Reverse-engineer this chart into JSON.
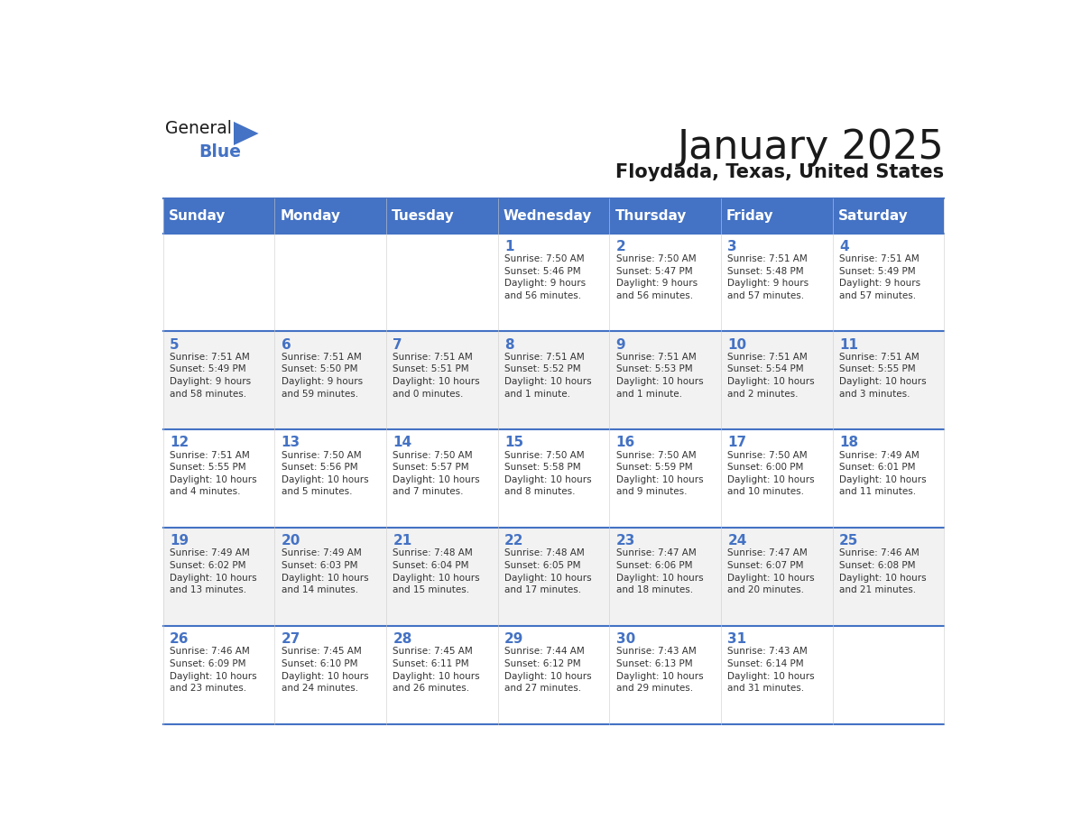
{
  "title": "January 2025",
  "subtitle": "Floydada, Texas, United States",
  "days_of_week": [
    "Sunday",
    "Monday",
    "Tuesday",
    "Wednesday",
    "Thursday",
    "Friday",
    "Saturday"
  ],
  "header_bg": "#4472C4",
  "header_text_color": "#FFFFFF",
  "cell_bg_light": "#FFFFFF",
  "cell_bg_alt": "#F2F2F2",
  "grid_line_color": "#4472C4",
  "day_number_color": "#4472C4",
  "cell_text_color": "#333333",
  "title_color": "#1a1a1a",
  "subtitle_color": "#1a1a1a",
  "logo_general_color": "#1a1a1a",
  "logo_blue_color": "#4472C4",
  "calendar_data": [
    [
      {
        "day": null,
        "info": ""
      },
      {
        "day": null,
        "info": ""
      },
      {
        "day": null,
        "info": ""
      },
      {
        "day": 1,
        "info": "Sunrise: 7:50 AM\nSunset: 5:46 PM\nDaylight: 9 hours\nand 56 minutes."
      },
      {
        "day": 2,
        "info": "Sunrise: 7:50 AM\nSunset: 5:47 PM\nDaylight: 9 hours\nand 56 minutes."
      },
      {
        "day": 3,
        "info": "Sunrise: 7:51 AM\nSunset: 5:48 PM\nDaylight: 9 hours\nand 57 minutes."
      },
      {
        "day": 4,
        "info": "Sunrise: 7:51 AM\nSunset: 5:49 PM\nDaylight: 9 hours\nand 57 minutes."
      }
    ],
    [
      {
        "day": 5,
        "info": "Sunrise: 7:51 AM\nSunset: 5:49 PM\nDaylight: 9 hours\nand 58 minutes."
      },
      {
        "day": 6,
        "info": "Sunrise: 7:51 AM\nSunset: 5:50 PM\nDaylight: 9 hours\nand 59 minutes."
      },
      {
        "day": 7,
        "info": "Sunrise: 7:51 AM\nSunset: 5:51 PM\nDaylight: 10 hours\nand 0 minutes."
      },
      {
        "day": 8,
        "info": "Sunrise: 7:51 AM\nSunset: 5:52 PM\nDaylight: 10 hours\nand 1 minute."
      },
      {
        "day": 9,
        "info": "Sunrise: 7:51 AM\nSunset: 5:53 PM\nDaylight: 10 hours\nand 1 minute."
      },
      {
        "day": 10,
        "info": "Sunrise: 7:51 AM\nSunset: 5:54 PM\nDaylight: 10 hours\nand 2 minutes."
      },
      {
        "day": 11,
        "info": "Sunrise: 7:51 AM\nSunset: 5:55 PM\nDaylight: 10 hours\nand 3 minutes."
      }
    ],
    [
      {
        "day": 12,
        "info": "Sunrise: 7:51 AM\nSunset: 5:55 PM\nDaylight: 10 hours\nand 4 minutes."
      },
      {
        "day": 13,
        "info": "Sunrise: 7:50 AM\nSunset: 5:56 PM\nDaylight: 10 hours\nand 5 minutes."
      },
      {
        "day": 14,
        "info": "Sunrise: 7:50 AM\nSunset: 5:57 PM\nDaylight: 10 hours\nand 7 minutes."
      },
      {
        "day": 15,
        "info": "Sunrise: 7:50 AM\nSunset: 5:58 PM\nDaylight: 10 hours\nand 8 minutes."
      },
      {
        "day": 16,
        "info": "Sunrise: 7:50 AM\nSunset: 5:59 PM\nDaylight: 10 hours\nand 9 minutes."
      },
      {
        "day": 17,
        "info": "Sunrise: 7:50 AM\nSunset: 6:00 PM\nDaylight: 10 hours\nand 10 minutes."
      },
      {
        "day": 18,
        "info": "Sunrise: 7:49 AM\nSunset: 6:01 PM\nDaylight: 10 hours\nand 11 minutes."
      }
    ],
    [
      {
        "day": 19,
        "info": "Sunrise: 7:49 AM\nSunset: 6:02 PM\nDaylight: 10 hours\nand 13 minutes."
      },
      {
        "day": 20,
        "info": "Sunrise: 7:49 AM\nSunset: 6:03 PM\nDaylight: 10 hours\nand 14 minutes."
      },
      {
        "day": 21,
        "info": "Sunrise: 7:48 AM\nSunset: 6:04 PM\nDaylight: 10 hours\nand 15 minutes."
      },
      {
        "day": 22,
        "info": "Sunrise: 7:48 AM\nSunset: 6:05 PM\nDaylight: 10 hours\nand 17 minutes."
      },
      {
        "day": 23,
        "info": "Sunrise: 7:47 AM\nSunset: 6:06 PM\nDaylight: 10 hours\nand 18 minutes."
      },
      {
        "day": 24,
        "info": "Sunrise: 7:47 AM\nSunset: 6:07 PM\nDaylight: 10 hours\nand 20 minutes."
      },
      {
        "day": 25,
        "info": "Sunrise: 7:46 AM\nSunset: 6:08 PM\nDaylight: 10 hours\nand 21 minutes."
      }
    ],
    [
      {
        "day": 26,
        "info": "Sunrise: 7:46 AM\nSunset: 6:09 PM\nDaylight: 10 hours\nand 23 minutes."
      },
      {
        "day": 27,
        "info": "Sunrise: 7:45 AM\nSunset: 6:10 PM\nDaylight: 10 hours\nand 24 minutes."
      },
      {
        "day": 28,
        "info": "Sunrise: 7:45 AM\nSunset: 6:11 PM\nDaylight: 10 hours\nand 26 minutes."
      },
      {
        "day": 29,
        "info": "Sunrise: 7:44 AM\nSunset: 6:12 PM\nDaylight: 10 hours\nand 27 minutes."
      },
      {
        "day": 30,
        "info": "Sunrise: 7:43 AM\nSunset: 6:13 PM\nDaylight: 10 hours\nand 29 minutes."
      },
      {
        "day": 31,
        "info": "Sunrise: 7:43 AM\nSunset: 6:14 PM\nDaylight: 10 hours\nand 31 minutes."
      },
      {
        "day": null,
        "info": ""
      }
    ]
  ]
}
